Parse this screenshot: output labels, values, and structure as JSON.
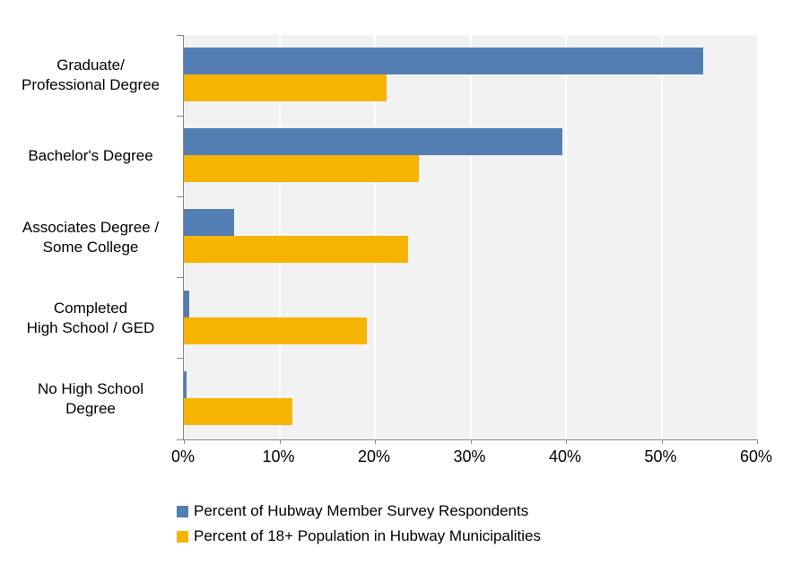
{
  "chart_data": {
    "type": "bar",
    "orientation": "horizontal",
    "title": "",
    "xlabel": "",
    "ylabel": "",
    "categories": [
      "Graduate/\nProfessional Degree",
      "Bachelor's Degree",
      "Associates Degree /\nSome College",
      "Completed\nHigh School / GED",
      "No High School\nDegree"
    ],
    "series": [
      {
        "name": "Percent of Hubway Member Survey Respondents",
        "color": "#527EB3",
        "values": [
          54.4,
          39.6,
          5.3,
          0.6,
          0.3
        ]
      },
      {
        "name": "Percent of 18+ Population in Hubway Municipalities",
        "color": "#F6B400",
        "values": [
          21.2,
          24.6,
          23.5,
          19.2,
          11.4
        ]
      }
    ],
    "x_ticks": [
      "0%",
      "10%",
      "20%",
      "30%",
      "40%",
      "50%",
      "60%"
    ],
    "xlim": [
      0,
      60
    ],
    "grid": "vertical-white-gridlines-on-gray-plot",
    "legend_position": "bottom-left",
    "colors": {
      "plot_background": "#F2F2F2",
      "gridline": "#FFFFFF",
      "axis_line": "#898989",
      "text": "#000000",
      "page_background": "#FFFFFF"
    }
  }
}
